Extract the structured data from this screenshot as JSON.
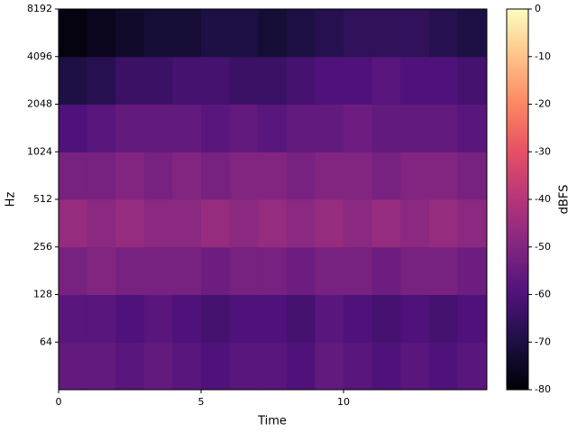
{
  "chart_data": {
    "type": "spectrogram",
    "x_label": "Time",
    "y_label": "Hz",
    "colorbar_label": "dBFS",
    "colormap": "magma",
    "y_scale": "log",
    "time_bins": [
      0,
      1,
      2,
      3,
      4,
      5,
      6,
      7,
      8,
      9,
      10,
      11,
      12,
      13,
      14,
      15
    ],
    "freq_bins": [
      32,
      64,
      128,
      256,
      512,
      1024,
      2048,
      4096,
      8192
    ],
    "z": [
      [
        -56,
        -56,
        -58,
        -56,
        -58,
        -60,
        -58,
        -58,
        -60,
        -56,
        -58,
        -60,
        -58,
        -60,
        -58
      ],
      [
        -58,
        -58,
        -60,
        -58,
        -60,
        -62,
        -60,
        -60,
        -62,
        -58,
        -60,
        -62,
        -60,
        -62,
        -60
      ],
      [
        -52,
        -50,
        -52,
        -52,
        -52,
        -54,
        -52,
        -52,
        -54,
        -52,
        -52,
        -54,
        -52,
        -52,
        -54
      ],
      [
        -46,
        -48,
        -46,
        -48,
        -48,
        -46,
        -48,
        -46,
        -48,
        -46,
        -48,
        -46,
        -48,
        -46,
        -48
      ],
      [
        -52,
        -52,
        -50,
        -52,
        -50,
        -52,
        -50,
        -50,
        -52,
        -50,
        -50,
        -52,
        -50,
        -50,
        -52
      ],
      [
        -60,
        -58,
        -56,
        -56,
        -56,
        -58,
        -56,
        -58,
        -56,
        -56,
        -54,
        -56,
        -56,
        -56,
        -58
      ],
      [
        -70,
        -68,
        -64,
        -64,
        -62,
        -62,
        -64,
        -64,
        -62,
        -60,
        -60,
        -58,
        -60,
        -60,
        -62
      ],
      [
        -78,
        -76,
        -74,
        -72,
        -72,
        -70,
        -70,
        -72,
        -70,
        -68,
        -66,
        -66,
        -66,
        -68,
        -70
      ]
    ],
    "xlim": [
      0,
      15.03
    ],
    "xticks": [
      0,
      5,
      10
    ],
    "ylim": [
      32,
      8192
    ],
    "yticks": [
      64,
      128,
      256,
      512,
      1024,
      2048,
      4096,
      8192
    ],
    "clim": [
      -80,
      0
    ],
    "cticks": [
      0,
      -10,
      -20,
      -30,
      -40,
      -50,
      -60,
      -70,
      -80
    ]
  }
}
